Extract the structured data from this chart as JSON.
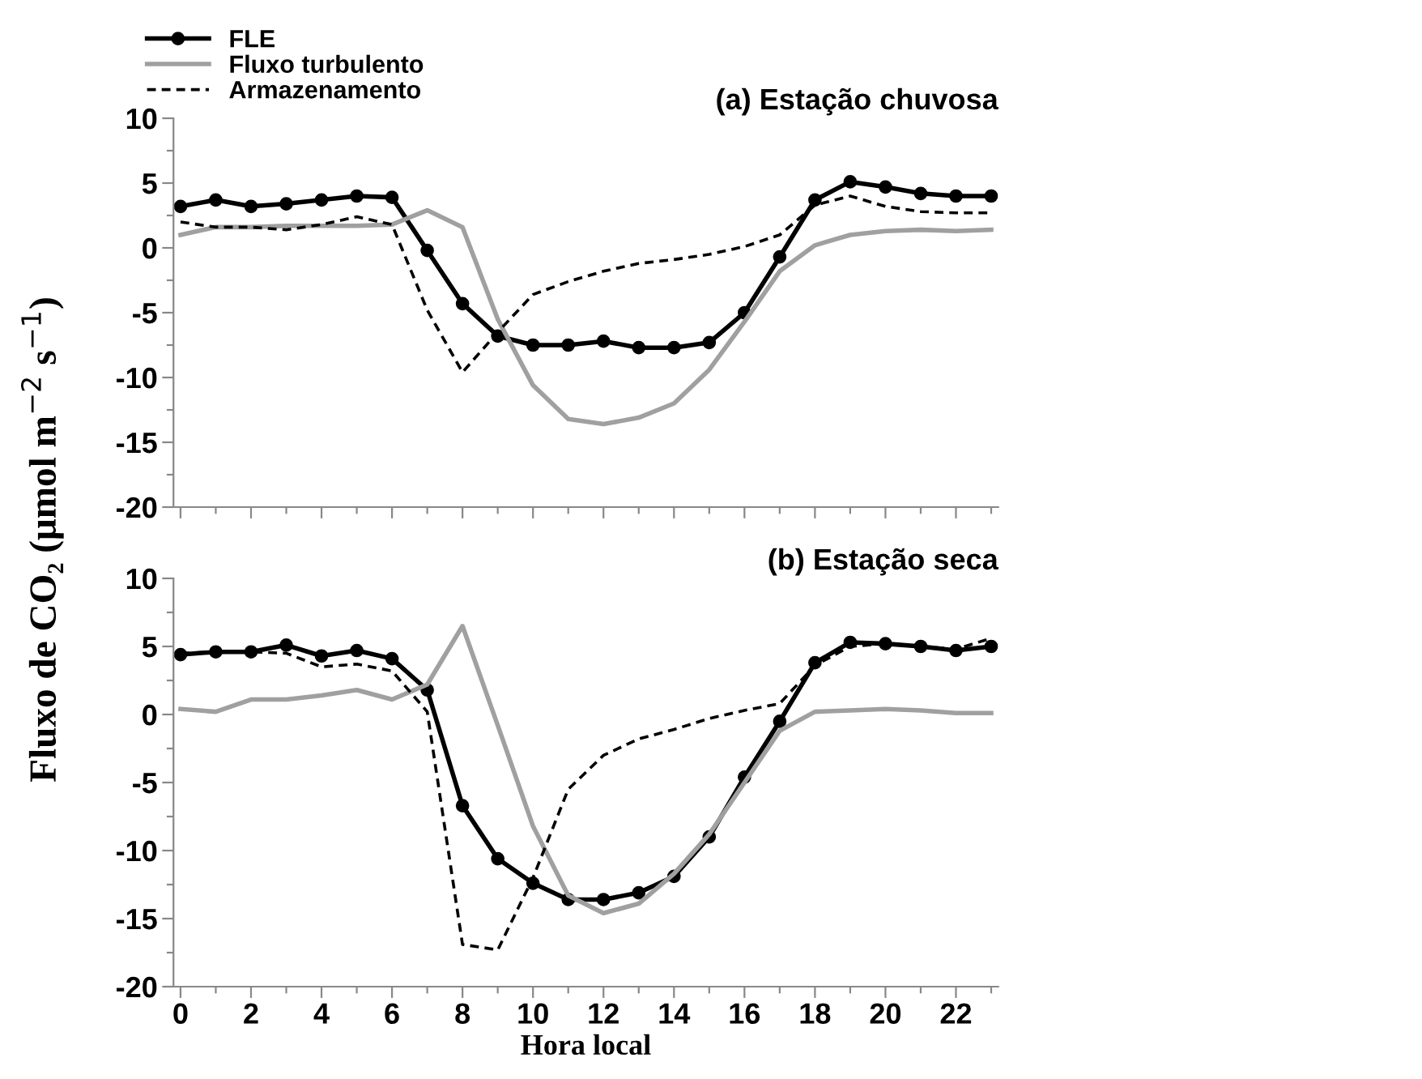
{
  "chart_data": [
    {
      "type": "line",
      "title": "(a) Estação chuvosa",
      "ylabel": "Fluxo de CO₂ (μmol m$^{−2}$ s$^{−1}$)",
      "legend": "top left",
      "tick_labels": "y",
      "grid": false,
      "x": [
        0,
        1,
        2,
        3,
        4,
        5,
        6,
        7,
        8,
        9,
        10,
        11,
        12,
        13,
        14,
        15,
        16,
        17,
        18,
        19,
        20,
        21,
        22,
        23
      ],
      "xlim": [
        -0.2,
        23.2
      ],
      "xticks": [
        0,
        {
          "value": 1,
          "label": null
        },
        2,
        {
          "value": 3,
          "label": null
        },
        4,
        {
          "value": 5,
          "label": null
        },
        6,
        {
          "value": 7,
          "label": null
        },
        8,
        {
          "value": 9,
          "label": null
        },
        10,
        {
          "value": 11,
          "label": null
        },
        12,
        {
          "value": 13,
          "label": null
        },
        14,
        {
          "value": 15,
          "label": null
        },
        16,
        {
          "value": 17,
          "label": null
        },
        18,
        {
          "value": 19,
          "label": null
        },
        20,
        {
          "value": 21,
          "label": null
        },
        22,
        {
          "value": 23,
          "label": null
        }
      ],
      "ylim": [
        -20,
        10
      ],
      "yticks": [
        -20,
        {
          "value": -17.5,
          "label": null
        },
        -15,
        {
          "value": -12.5,
          "label": null
        },
        -10,
        {
          "value": -7.5,
          "label": null
        },
        -5,
        {
          "value": -2.5,
          "label": null
        },
        0,
        {
          "value": 2.5,
          "label": null
        },
        5,
        {
          "value": 7.5,
          "label": null
        },
        10
      ],
      "series": [
        {
          "name": "FLE",
          "color": "#000000",
          "marker": "circle",
          "line_style": "solid",
          "values": [
            3.2,
            3.7,
            3.2,
            3.4,
            3.7,
            4.0,
            3.9,
            -0.2,
            -4.3,
            -6.8,
            -7.5,
            -7.5,
            -7.2,
            -7.7,
            -7.7,
            -7.3,
            -5.0,
            -0.7,
            3.7,
            5.1,
            4.7,
            4.2,
            4.0,
            4.0
          ]
        },
        {
          "name": "Fluxo turbulento",
          "color": "#a0a0a0",
          "marker": "none",
          "line_style": "solid",
          "values": [
            1.0,
            1.6,
            1.6,
            1.7,
            1.7,
            1.7,
            1.8,
            2.9,
            1.6,
            -5.5,
            -10.6,
            -13.2,
            -13.6,
            -13.1,
            -12.0,
            -9.4,
            -5.7,
            -1.8,
            0.2,
            1.0,
            1.3,
            1.4,
            1.3,
            1.4
          ]
        },
        {
          "name": "Armazenamento",
          "color": "#000000",
          "marker": "none",
          "line_style": "dashed",
          "values": [
            2.0,
            1.6,
            1.6,
            1.4,
            1.8,
            2.4,
            1.8,
            -4.8,
            -9.6,
            -6.5,
            -3.6,
            -2.6,
            -1.8,
            -1.2,
            -0.9,
            -0.5,
            0.1,
            1.0,
            3.3,
            4.0,
            3.2,
            2.8,
            2.7,
            2.7
          ]
        }
      ]
    },
    {
      "type": "line",
      "title": "(b) Estação seca",
      "xlabel": "Hora local",
      "legend": false,
      "grid": false,
      "x": [
        0,
        1,
        2,
        3,
        4,
        5,
        6,
        7,
        8,
        9,
        10,
        11,
        12,
        13,
        14,
        15,
        16,
        17,
        18,
        19,
        20,
        21,
        22,
        23
      ],
      "xlim": [
        -0.2,
        23.2
      ],
      "xticks": [
        0,
        {
          "value": 1,
          "label": null
        },
        2,
        {
          "value": 3,
          "label": null
        },
        4,
        {
          "value": 5,
          "label": null
        },
        6,
        {
          "value": 7,
          "label": null
        },
        8,
        {
          "value": 9,
          "label": null
        },
        10,
        {
          "value": 11,
          "label": null
        },
        12,
        {
          "value": 13,
          "label": null
        },
        14,
        {
          "value": 15,
          "label": null
        },
        16,
        {
          "value": 17,
          "label": null
        },
        18,
        {
          "value": 19,
          "label": null
        },
        20,
        {
          "value": 21,
          "label": null
        },
        22,
        {
          "value": 23,
          "label": null
        }
      ],
      "ylim": [
        -20,
        10
      ],
      "yticks": [
        -20,
        {
          "value": -17.5,
          "label": null
        },
        -15,
        {
          "value": -12.5,
          "label": null
        },
        -10,
        {
          "value": -7.5,
          "label": null
        },
        -5,
        {
          "value": -2.5,
          "label": null
        },
        0,
        {
          "value": 2.5,
          "label": null
        },
        5,
        {
          "value": 7.5,
          "label": null
        },
        10
      ],
      "series": [
        {
          "color": "#000000",
          "marker": "circle",
          "line_style": "solid",
          "values": [
            4.4,
            4.6,
            4.6,
            5.1,
            4.3,
            4.7,
            4.1,
            1.8,
            -6.7,
            -10.6,
            -12.4,
            -13.6,
            -13.6,
            -13.1,
            -11.9,
            -9.0,
            -4.6,
            -0.5,
            3.8,
            5.3,
            5.2,
            5.0,
            4.7,
            5.0
          ]
        },
        {
          "color": "#a0a0a0",
          "marker": "none",
          "line_style": "solid",
          "values": [
            0.4,
            0.2,
            1.1,
            1.1,
            1.4,
            1.8,
            1.1,
            2.2,
            6.5,
            -0.8,
            -8.2,
            -13.3,
            -14.6,
            -13.9,
            -11.7,
            -8.8,
            -5.0,
            -1.2,
            0.2,
            0.3,
            0.4,
            0.3,
            0.1,
            0.1
          ]
        },
        {
          "color": "#000000",
          "marker": "none",
          "line_style": "dashed",
          "values": [
            4.5,
            4.6,
            4.6,
            4.5,
            3.5,
            3.7,
            3.2,
            0.2,
            -16.9,
            -17.3,
            -12.0,
            -5.5,
            -3.0,
            -1.8,
            -1.1,
            -0.3,
            0.3,
            0.8,
            3.6,
            5.0,
            5.2,
            5.0,
            4.8,
            5.6
          ]
        }
      ]
    }
  ]
}
